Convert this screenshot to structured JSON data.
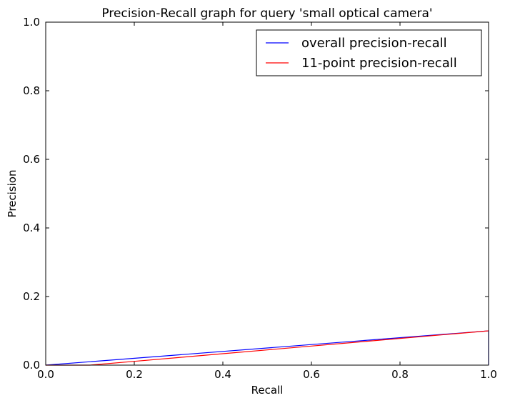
{
  "chart_data": {
    "type": "line",
    "title": "Precision-Recall graph for query 'small optical camera'",
    "xlabel": "Recall",
    "ylabel": "Precision",
    "xlim": [
      0.0,
      1.0
    ],
    "ylim": [
      0.0,
      1.0
    ],
    "xticks": [
      "0.0",
      "0.2",
      "0.4",
      "0.6",
      "0.8",
      "1.0"
    ],
    "yticks": [
      "0.0",
      "0.2",
      "0.4",
      "0.6",
      "0.8",
      "1.0"
    ],
    "grid": false,
    "legend_position": "top-right",
    "series": [
      {
        "name": "overall precision-recall",
        "color": "#0000ff",
        "x": [
          0.0,
          1.0,
          1.0
        ],
        "y": [
          0.0,
          0.1,
          0.0
        ]
      },
      {
        "name": "11-point precision-recall",
        "color": "#ff0000",
        "x": [
          0.0,
          0.1,
          0.2,
          0.3,
          0.4,
          0.5,
          0.6,
          0.7,
          0.8,
          0.9,
          1.0
        ],
        "y": [
          0.0,
          0.0,
          0.0111,
          0.0222,
          0.0333,
          0.0444,
          0.0556,
          0.0667,
          0.0778,
          0.0889,
          0.1
        ]
      }
    ]
  }
}
